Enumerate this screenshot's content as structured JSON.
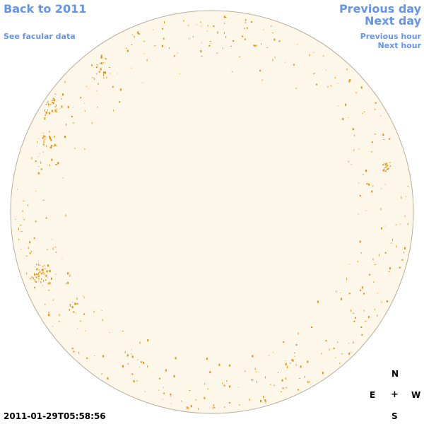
{
  "nav": {
    "back_label": "Back to 2011",
    "facular_label": "See facular data",
    "prev_day_label": "Previous day",
    "next_day_label": "Next day",
    "prev_hour_label": "Previous hour",
    "next_hour_label": "Next hour"
  },
  "timestamp": "2011-01-29T05:58:56",
  "compass": {
    "north": "N",
    "east": "E",
    "center": "+",
    "west": "W",
    "south": "S"
  },
  "colors": {
    "disk_fill": "#fdf7ea",
    "disk_edge": "#b9ae98",
    "facula": "#e8900a",
    "link": "#6495ed"
  }
}
